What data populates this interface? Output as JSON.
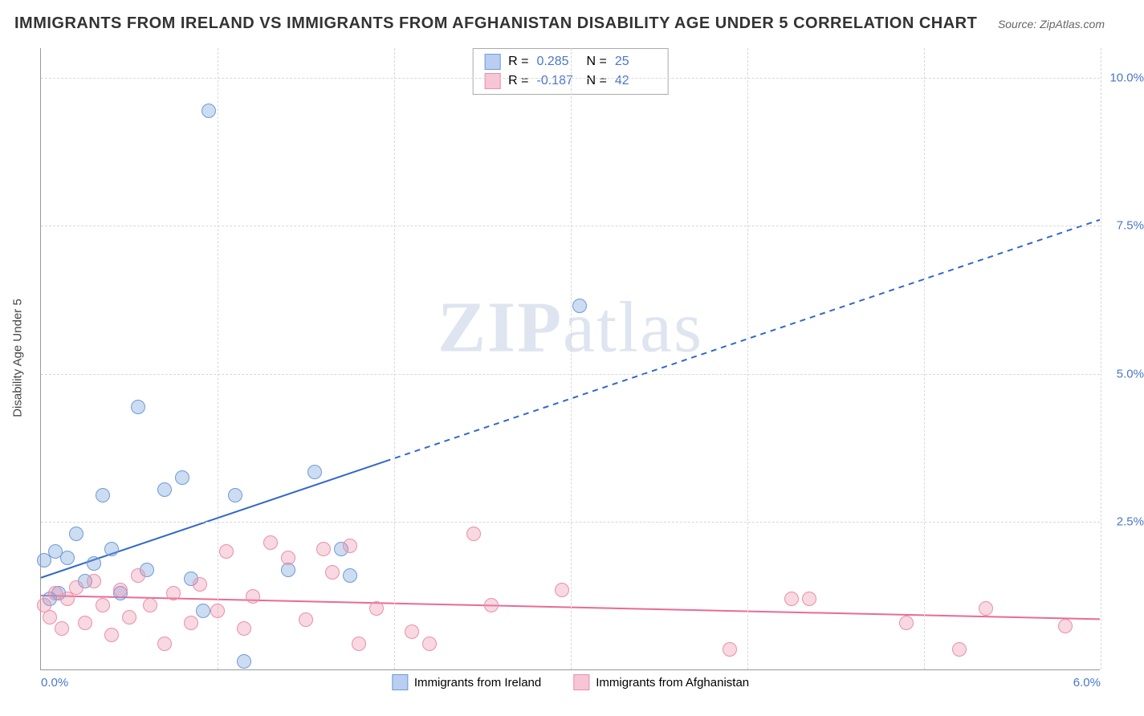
{
  "title": "IMMIGRANTS FROM IRELAND VS IMMIGRANTS FROM AFGHANISTAN DISABILITY AGE UNDER 5 CORRELATION CHART",
  "source_label": "Source: ZipAtlas.com",
  "y_axis_label": "Disability Age Under 5",
  "watermark_zip": "ZIP",
  "watermark_atlas": "atlas",
  "chart": {
    "type": "scatter",
    "xlim": [
      0.0,
      6.0
    ],
    "ylim": [
      0.0,
      10.5
    ],
    "xtick_labels": [
      "0.0%",
      "6.0%"
    ],
    "xtick_positions": [
      0.0,
      6.0
    ],
    "ytick_labels": [
      "2.5%",
      "5.0%",
      "7.5%",
      "10.0%"
    ],
    "ytick_positions": [
      2.5,
      5.0,
      7.5,
      10.0
    ],
    "x_gridlines": [
      1.0,
      2.0,
      3.0,
      4.0,
      5.0,
      6.0
    ],
    "background_color": "#ffffff",
    "grid_color": "#d8d8d8",
    "axis_color": "#999999",
    "tick_label_color": "#4a76c7",
    "marker_radius": 9,
    "marker_stroke_width": 1.2
  },
  "series": [
    {
      "id": "ireland",
      "label": "Immigrants from Ireland",
      "fill_color": "rgba(110,155,216,0.35)",
      "stroke_color": "#6e9bd8",
      "swatch_fill": "#b9cef0",
      "swatch_border": "#6e9bd8",
      "R": "0.285",
      "N": "25",
      "trend": {
        "x1": 0.0,
        "y1": 1.55,
        "x2": 6.0,
        "y2": 7.6,
        "solid_until_x": 1.95,
        "color": "#3268c8",
        "width": 2
      },
      "points": [
        [
          0.02,
          1.85
        ],
        [
          0.05,
          1.2
        ],
        [
          0.08,
          2.0
        ],
        [
          0.1,
          1.3
        ],
        [
          0.15,
          1.9
        ],
        [
          0.2,
          2.3
        ],
        [
          0.25,
          1.5
        ],
        [
          0.3,
          1.8
        ],
        [
          0.35,
          2.95
        ],
        [
          0.4,
          2.05
        ],
        [
          0.45,
          1.3
        ],
        [
          0.55,
          4.45
        ],
        [
          0.6,
          1.7
        ],
        [
          0.7,
          3.05
        ],
        [
          0.8,
          3.25
        ],
        [
          0.85,
          1.55
        ],
        [
          0.92,
          1.0
        ],
        [
          0.95,
          9.45
        ],
        [
          1.1,
          2.95
        ],
        [
          1.15,
          0.15
        ],
        [
          1.4,
          1.7
        ],
        [
          1.55,
          3.35
        ],
        [
          1.7,
          2.05
        ],
        [
          1.75,
          1.6
        ],
        [
          3.05,
          6.15
        ]
      ]
    },
    {
      "id": "afghanistan",
      "label": "Immigrants from Afghanistan",
      "fill_color": "rgba(236,142,170,0.35)",
      "stroke_color": "#ec8eaa",
      "swatch_fill": "#f6c6d6",
      "swatch_border": "#ec8eaa",
      "R": "-0.187",
      "N": "42",
      "trend": {
        "x1": 0.0,
        "y1": 1.25,
        "x2": 6.0,
        "y2": 0.85,
        "solid_until_x": 6.0,
        "color": "#e86b95",
        "width": 2
      },
      "points": [
        [
          0.02,
          1.1
        ],
        [
          0.05,
          0.9
        ],
        [
          0.08,
          1.3
        ],
        [
          0.12,
          0.7
        ],
        [
          0.15,
          1.2
        ],
        [
          0.2,
          1.4
        ],
        [
          0.25,
          0.8
        ],
        [
          0.3,
          1.5
        ],
        [
          0.35,
          1.1
        ],
        [
          0.4,
          0.6
        ],
        [
          0.45,
          1.35
        ],
        [
          0.5,
          0.9
        ],
        [
          0.55,
          1.6
        ],
        [
          0.62,
          1.1
        ],
        [
          0.7,
          0.45
        ],
        [
          0.75,
          1.3
        ],
        [
          0.85,
          0.8
        ],
        [
          0.9,
          1.45
        ],
        [
          1.0,
          1.0
        ],
        [
          1.05,
          2.0
        ],
        [
          1.15,
          0.7
        ],
        [
          1.2,
          1.25
        ],
        [
          1.3,
          2.15
        ],
        [
          1.4,
          1.9
        ],
        [
          1.5,
          0.85
        ],
        [
          1.6,
          2.05
        ],
        [
          1.65,
          1.65
        ],
        [
          1.75,
          2.1
        ],
        [
          1.8,
          0.45
        ],
        [
          1.9,
          1.05
        ],
        [
          2.1,
          0.65
        ],
        [
          2.2,
          0.45
        ],
        [
          2.45,
          2.3
        ],
        [
          2.55,
          1.1
        ],
        [
          2.95,
          1.35
        ],
        [
          3.9,
          0.35
        ],
        [
          4.25,
          1.2
        ],
        [
          4.35,
          1.2
        ],
        [
          4.9,
          0.8
        ],
        [
          5.2,
          0.35
        ],
        [
          5.35,
          1.05
        ],
        [
          5.8,
          0.75
        ]
      ]
    }
  ],
  "stats_box": {
    "R_label": "R  =",
    "N_label": "N  ="
  }
}
